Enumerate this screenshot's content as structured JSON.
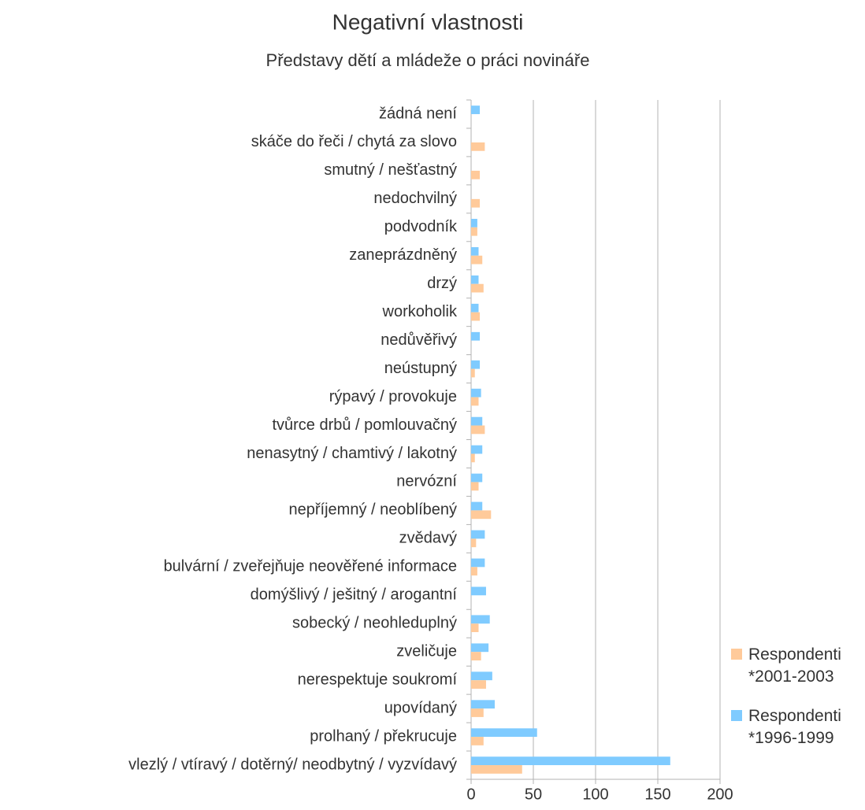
{
  "chart_data": {
    "type": "hbar",
    "title": "Negativní vlastnosti",
    "subtitle": "Představy dětí a mládeže o práci novináře",
    "categories": [
      "žádná není",
      "skáče do řeči / chytá za slovo",
      "smutný / nešťastný",
      "nedochvilný",
      "podvodník",
      "zaneprázdněný",
      "drzý",
      "workoholik",
      "nedůvěřivý",
      "neústupný",
      "rýpavý / provokuje",
      "tvůrce drbů / pomlouvačný",
      "nenasytný / chamtivý / lakotný",
      "nervózní",
      "nepříjemný / neoblíbený",
      "zvědavý",
      "bulvární / zveřejňuje neověřené informace",
      "domýšlivý / ješitný / arogantní",
      "sobecký / neohleduplný",
      "zveličuje",
      "nerespektuje soukromí",
      "upovídaný",
      "prolhaný / překrucuje",
      "vlezlý / vtíravý / dotěrný/ neodbytný / vyzvídavý"
    ],
    "series": [
      {
        "name": "Respondenti *2001-2003",
        "color": "#ffca9a",
        "values": [
          0,
          11,
          7,
          7,
          5,
          9,
          10,
          7,
          0,
          3,
          6,
          11,
          3,
          6,
          16,
          4,
          5,
          0,
          6,
          8,
          12,
          10,
          10,
          41
        ]
      },
      {
        "name": "Respondenti *1996-1999",
        "color": "#7fcbff",
        "values": [
          7,
          0,
          0,
          0,
          5,
          6,
          6,
          6,
          7,
          7,
          8,
          9,
          9,
          9,
          9,
          11,
          11,
          12,
          15,
          14,
          17,
          19,
          53,
          160
        ]
      }
    ],
    "xlim": [
      0,
      200
    ],
    "xticks": [
      0,
      50,
      100,
      150,
      200
    ],
    "grid": true,
    "legend": "right"
  }
}
